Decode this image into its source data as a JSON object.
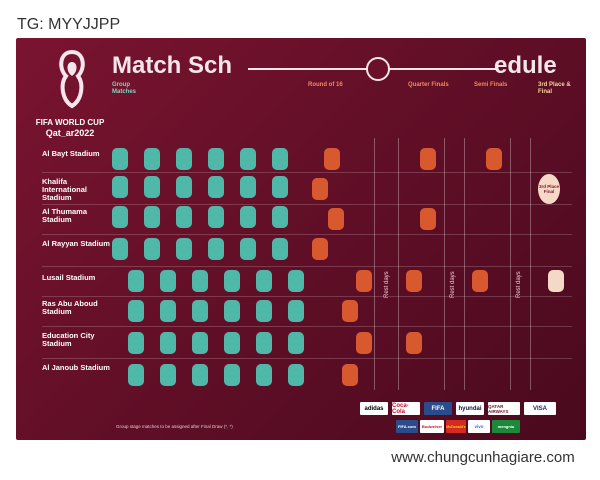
{
  "watermarks": {
    "top": "TG: MYYJJPP",
    "bottom": "www.chungcunhagiare.com"
  },
  "poster": {
    "title_left": "Match Sch",
    "title_right": "edule",
    "logo_line1": "FIFA WORLD CUP",
    "logo_line2": "Qat_ar2022",
    "stages": {
      "group": "Group Matches",
      "r16": "Round of 16",
      "qf": "Quarter Finals",
      "sf": "Semi Finals",
      "final": "3rd Place & Final"
    },
    "stadiums": [
      "Al Bayt Stadium",
      "Khalifa International Stadium",
      "Al Thumama Stadium",
      "Al Rayyan Stadium",
      "Lusail Stadium",
      "Ras Abu Aboud Stadium",
      "Education City Stadium",
      "Al Janoub Stadium"
    ],
    "rest_days": "Rest days",
    "final_marker": "3rd Place Final",
    "footnote": "Group stage matches to be assigned after Final Draw (*, *)",
    "sponsors": [
      "adidas",
      "Coca-Cola",
      "FIFA",
      "hyundai",
      "QATAR AIRWAYS",
      "VISA",
      "FIFA.com",
      "Budweiser",
      "McDonald's",
      "vivo",
      "mengniu"
    ]
  },
  "colors": {
    "bg": "#6a1028",
    "group": "#4fb8a8",
    "knockout": "#d9592f",
    "final": "#f5d8c6"
  }
}
